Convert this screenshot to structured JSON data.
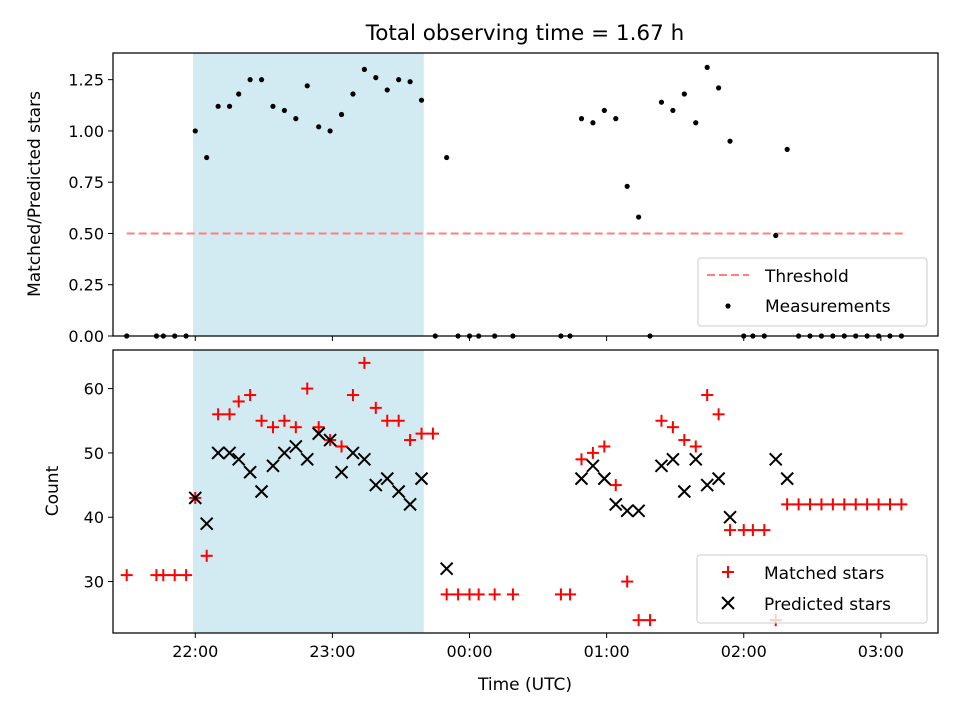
{
  "chart_data": {
    "title": "Total observing time = 1.67 h",
    "xlabel": "Time (UTC)",
    "x_tick_labels": [
      "22:00",
      "23:00",
      "00:00",
      "01:00",
      "02:00",
      "03:00"
    ],
    "x_ticks": [
      "22:00",
      "23:00",
      "24:00",
      "25:00",
      "26:00",
      "27:00"
    ],
    "xlim": [
      "21:24",
      "27:25"
    ],
    "shaded_span": [
      "21:59",
      "23:40"
    ],
    "shaded_color": "#add8e6",
    "top": {
      "type": "scatter",
      "ylabel": "Matched/Predicted stars",
      "ylim": [
        0,
        1.38
      ],
      "yticks": [
        0.0,
        0.25,
        0.5,
        0.75,
        1.0,
        1.25
      ],
      "ytick_labels": [
        "0.00",
        "0.25",
        "0.50",
        "0.75",
        "1.00",
        "1.25"
      ],
      "legend_position": "lower-right",
      "threshold": {
        "name": "Threshold",
        "value": 0.5,
        "x_range": [
          "21:30",
          "27:10"
        ],
        "color": "#ff7f7f",
        "style": "dashed"
      },
      "measurements": {
        "name": "Measurements",
        "color": "#000000",
        "points": [
          [
            "21:30",
            0.0
          ],
          [
            "21:43",
            0.0
          ],
          [
            "21:46",
            0.0
          ],
          [
            "21:51",
            0.0
          ],
          [
            "21:56",
            0.0
          ],
          [
            "22:00",
            1.0
          ],
          [
            "22:05",
            0.87
          ],
          [
            "22:10",
            1.12
          ],
          [
            "22:15",
            1.12
          ],
          [
            "22:19",
            1.18
          ],
          [
            "22:24",
            1.25
          ],
          [
            "22:29",
            1.25
          ],
          [
            "22:34",
            1.12
          ],
          [
            "22:39",
            1.1
          ],
          [
            "22:44",
            1.06
          ],
          [
            "22:49",
            1.22
          ],
          [
            "22:54",
            1.02
          ],
          [
            "22:59",
            1.0
          ],
          [
            "23:04",
            1.08
          ],
          [
            "23:09",
            1.18
          ],
          [
            "23:14",
            1.3
          ],
          [
            "23:19",
            1.26
          ],
          [
            "23:24",
            1.2
          ],
          [
            "23:29",
            1.25
          ],
          [
            "23:34",
            1.24
          ],
          [
            "23:39",
            1.15
          ],
          [
            "23:45",
            0.0
          ],
          [
            "23:50",
            0.87
          ],
          [
            "23:55",
            0.0
          ],
          [
            "24:00",
            0.0
          ],
          [
            "24:04",
            0.0
          ],
          [
            "24:11",
            0.0
          ],
          [
            "24:19",
            0.0
          ],
          [
            "24:40",
            0.0
          ],
          [
            "24:44",
            0.0
          ],
          [
            "24:49",
            1.06
          ],
          [
            "24:54",
            1.04
          ],
          [
            "24:59",
            1.1
          ],
          [
            "25:04",
            1.06
          ],
          [
            "25:09",
            0.73
          ],
          [
            "25:14",
            0.58
          ],
          [
            "25:19",
            0.0
          ],
          [
            "25:24",
            1.14
          ],
          [
            "25:29",
            1.1
          ],
          [
            "25:34",
            1.18
          ],
          [
            "25:39",
            1.04
          ],
          [
            "25:44",
            1.31
          ],
          [
            "25:49",
            1.21
          ],
          [
            "25:54",
            0.95
          ],
          [
            "26:00",
            0.0
          ],
          [
            "26:04",
            0.0
          ],
          [
            "26:09",
            0.0
          ],
          [
            "26:14",
            0.49
          ],
          [
            "26:19",
            0.91
          ],
          [
            "26:24",
            0.0
          ],
          [
            "26:29",
            0.0
          ],
          [
            "26:34",
            0.0
          ],
          [
            "26:39",
            0.0
          ],
          [
            "26:44",
            0.0
          ],
          [
            "26:49",
            0.0
          ],
          [
            "26:54",
            0.0
          ],
          [
            "26:59",
            0.0
          ],
          [
            "27:04",
            0.0
          ],
          [
            "27:09",
            0.0
          ]
        ]
      }
    },
    "bottom": {
      "type": "scatter",
      "ylabel": "Count",
      "ylim": [
        22.0,
        66.0
      ],
      "yticks": [
        30,
        40,
        50,
        60
      ],
      "ytick_labels": [
        "30",
        "40",
        "50",
        "60"
      ],
      "legend_position": "lower-right",
      "series": [
        {
          "name": "Matched stars",
          "marker": "+",
          "color": "#ff0000",
          "points": [
            [
              "21:30",
              31
            ],
            [
              "21:43",
              31
            ],
            [
              "21:46",
              31
            ],
            [
              "21:51",
              31
            ],
            [
              "21:56",
              31
            ],
            [
              "22:00",
              43
            ],
            [
              "22:05",
              34
            ],
            [
              "22:10",
              56
            ],
            [
              "22:15",
              56
            ],
            [
              "22:19",
              58
            ],
            [
              "22:24",
              59
            ],
            [
              "22:29",
              55
            ],
            [
              "22:34",
              54
            ],
            [
              "22:39",
              55
            ],
            [
              "22:44",
              54
            ],
            [
              "22:49",
              60
            ],
            [
              "22:54",
              54
            ],
            [
              "22:59",
              52
            ],
            [
              "23:04",
              51
            ],
            [
              "23:09",
              59
            ],
            [
              "23:14",
              64
            ],
            [
              "23:19",
              57
            ],
            [
              "23:24",
              55
            ],
            [
              "23:29",
              55
            ],
            [
              "23:34",
              52
            ],
            [
              "23:39",
              53
            ],
            [
              "23:44",
              53
            ],
            [
              "23:50",
              28
            ],
            [
              "23:55",
              28
            ],
            [
              "24:00",
              28
            ],
            [
              "24:04",
              28
            ],
            [
              "24:11",
              28
            ],
            [
              "24:19",
              28
            ],
            [
              "24:40",
              28
            ],
            [
              "24:44",
              28
            ],
            [
              "24:49",
              49
            ],
            [
              "24:54",
              50
            ],
            [
              "24:59",
              51
            ],
            [
              "25:04",
              45
            ],
            [
              "25:09",
              30
            ],
            [
              "25:14",
              24
            ],
            [
              "25:19",
              24
            ],
            [
              "25:24",
              55
            ],
            [
              "25:29",
              54
            ],
            [
              "25:34",
              52
            ],
            [
              "25:39",
              51
            ],
            [
              "25:44",
              59
            ],
            [
              "25:49",
              56
            ],
            [
              "25:54",
              38
            ],
            [
              "26:00",
              38
            ],
            [
              "26:04",
              38
            ],
            [
              "26:09",
              38
            ],
            [
              "26:14",
              24
            ],
            [
              "26:19",
              42
            ],
            [
              "26:24",
              42
            ],
            [
              "26:29",
              42
            ],
            [
              "26:34",
              42
            ],
            [
              "26:39",
              42
            ],
            [
              "26:44",
              42
            ],
            [
              "26:49",
              42
            ],
            [
              "26:54",
              42
            ],
            [
              "26:59",
              42
            ],
            [
              "27:04",
              42
            ],
            [
              "27:09",
              42
            ]
          ]
        },
        {
          "name": "Predicted stars",
          "marker": "x",
          "color": "#000000",
          "points": [
            [
              "22:00",
              43
            ],
            [
              "22:05",
              39
            ],
            [
              "22:10",
              50
            ],
            [
              "22:15",
              50
            ],
            [
              "22:19",
              49
            ],
            [
              "22:24",
              47
            ],
            [
              "22:29",
              44
            ],
            [
              "22:34",
              48
            ],
            [
              "22:39",
              50
            ],
            [
              "22:44",
              51
            ],
            [
              "22:49",
              49
            ],
            [
              "22:54",
              53
            ],
            [
              "22:59",
              52
            ],
            [
              "23:04",
              47
            ],
            [
              "23:09",
              50
            ],
            [
              "23:14",
              49
            ],
            [
              "23:19",
              45
            ],
            [
              "23:24",
              46
            ],
            [
              "23:29",
              44
            ],
            [
              "23:34",
              42
            ],
            [
              "23:39",
              46
            ],
            [
              "23:50",
              32
            ],
            [
              "24:49",
              46
            ],
            [
              "24:54",
              48
            ],
            [
              "24:59",
              46
            ],
            [
              "25:04",
              42
            ],
            [
              "25:09",
              41
            ],
            [
              "25:14",
              41
            ],
            [
              "25:24",
              48
            ],
            [
              "25:29",
              49
            ],
            [
              "25:34",
              44
            ],
            [
              "25:39",
              49
            ],
            [
              "25:44",
              45
            ],
            [
              "25:49",
              46
            ],
            [
              "25:54",
              40
            ],
            [
              "26:14",
              49
            ],
            [
              "26:19",
              46
            ]
          ]
        }
      ]
    }
  }
}
